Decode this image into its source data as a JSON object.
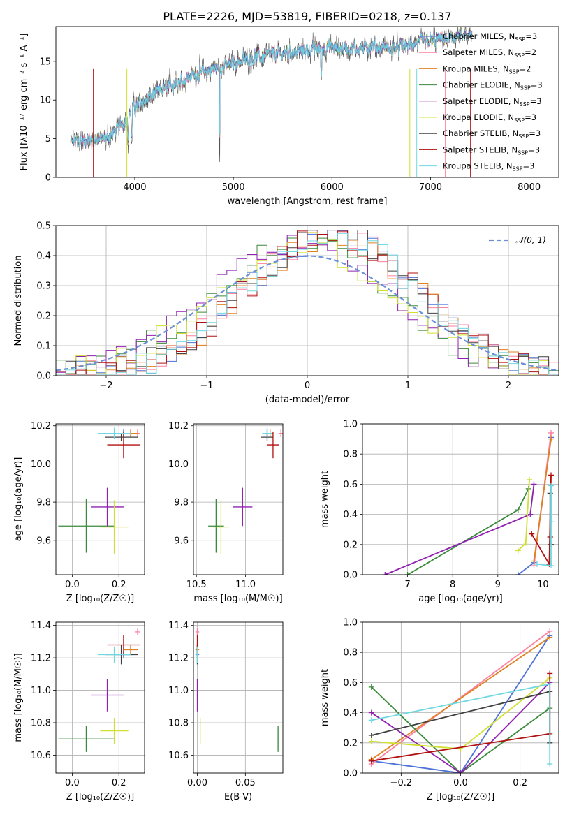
{
  "figure": {
    "title": "PLATE=2226, MJD=53819, FIBERID=0218, z=0.137"
  },
  "colors": {
    "chab_miles": "#4c72d8",
    "salp_miles": "#ff7f9f",
    "krou_miles": "#e08020",
    "chab_elodie": "#3a8a3a",
    "salp_elodie": "#9020b0",
    "krou_elodie": "#d0e030",
    "chab_stelib": "#404040",
    "salp_stelib": "#b01010",
    "krou_stelib": "#70d8e0",
    "normal": "#6a8fd8"
  },
  "chart_data": [
    {
      "id": "spectrum",
      "type": "line",
      "title": "PLATE=2226, MJD=53819, FIBERID=0218, z=0.137",
      "xlabel": "wavelength [Angstrom, rest frame]",
      "ylabel": "Flux [fλ10⁻¹⁷ erg cm⁻² s⁻¹ A⁻¹]",
      "xlim": [
        3200,
        8300
      ],
      "ylim": [
        0,
        19.5
      ],
      "xticks": [
        4000,
        5000,
        6000,
        7000,
        8000
      ],
      "yticks": [
        0,
        5,
        10,
        15
      ],
      "grid": false,
      "legend_position": "right",
      "legend": [
        "Chabrier MILES, N_SSP=3",
        "Salpeter MILES, N_SSP=2",
        "Kroupa MILES, N_SSP=2",
        "Chabrier ELODIE, N_SSP=3",
        "Salpeter ELODIE, N_SSP=3",
        "Kroupa ELODIE, N_SSP=3",
        "Chabrier STELIB, N_SSP=3",
        "Salpeter STELIB, N_SSP=3",
        "Kroupa STELIB, N_SSP=3"
      ],
      "continuum": {
        "x": [
          3350,
          3500,
          3700,
          3850,
          3950,
          4050,
          4200,
          4400,
          4600,
          4800,
          5000,
          5200,
          5400,
          5600,
          5800,
          6000,
          6200,
          6400,
          6600,
          6800,
          7000,
          7200,
          7300
        ],
        "y": [
          4.6,
          4.8,
          4.9,
          6.5,
          8.5,
          9.6,
          10.8,
          12.2,
          13.3,
          14.0,
          14.8,
          15.5,
          15.8,
          16.2,
          16.5,
          16.8,
          16.6,
          16.9,
          16.7,
          17.2,
          17.6,
          17.9,
          18.2
        ]
      }
    },
    {
      "id": "residuals",
      "type": "histogram",
      "xlabel": "(data-model)/error",
      "ylabel": "Normed distribution",
      "xlim": [
        -2.5,
        2.5
      ],
      "ylim": [
        0,
        0.5
      ],
      "xticks": [
        -2,
        -1,
        0,
        1,
        2
      ],
      "xticklabels": [
        "−2",
        "−1",
        "0",
        "1",
        "2"
      ],
      "yticks": [
        0.0,
        0.1,
        0.2,
        0.3,
        0.4,
        0.5
      ],
      "grid": true,
      "legend": [
        "𝒩(0, 1)"
      ],
      "legend_position": "top-right",
      "normal_curve": {
        "mean": 0,
        "sigma": 1
      },
      "bins": {
        "start": -2.5,
        "width": 0.1
      }
    },
    {
      "id": "age_vs_Z",
      "type": "scatter",
      "xlabel": "Z [log₁₀(Z/Z☉)]",
      "ylabel": "age  [log₁₀(age/yr)]",
      "xlim": [
        -0.07,
        0.31
      ],
      "ylim": [
        9.42,
        10.21
      ],
      "xticks": [
        0.0,
        0.2
      ],
      "yticks": [
        9.6,
        9.8,
        10.0,
        10.2
      ],
      "grid": true
    },
    {
      "id": "age_vs_mass",
      "type": "scatter",
      "xlabel": "mass [log₁₀(M/M☉)]",
      "ylabel": "",
      "xlim": [
        10.47,
        11.38
      ],
      "ylim": [
        9.42,
        10.21
      ],
      "xticks": [
        10.5,
        11.0
      ],
      "yticks": [
        9.6,
        9.8,
        10.0,
        10.2
      ],
      "grid": true
    },
    {
      "id": "massweight_vs_age",
      "type": "line",
      "xlabel": "age  [log₁₀(age/yr)]",
      "ylabel": "mass weight",
      "xlim": [
        6.0,
        10.35
      ],
      "ylim": [
        0,
        1.0
      ],
      "xticks": [
        7,
        8,
        9,
        10
      ],
      "yticks": [
        0.0,
        0.2,
        0.4,
        0.6,
        0.8,
        1.0
      ],
      "grid": true
    },
    {
      "id": "mass_vs_Z",
      "type": "scatter",
      "xlabel": "Z [log₁₀(Z/Z☉)]",
      "ylabel": "mass [log₁₀(M/M☉)]",
      "xlim": [
        -0.07,
        0.31
      ],
      "ylim": [
        10.49,
        11.42
      ],
      "xticks": [
        0.0,
        0.2
      ],
      "yticks": [
        10.6,
        10.8,
        11.0,
        11.2,
        11.4
      ],
      "grid": true
    },
    {
      "id": "mass_vs_ebv",
      "type": "scatter",
      "xlabel": "E(B-V)",
      "ylabel": "",
      "xlim": [
        -0.004,
        0.089
      ],
      "ylim": [
        10.49,
        11.42
      ],
      "xticks": [
        0.0,
        0.05
      ],
      "yticks": [
        10.6,
        10.8,
        11.0,
        11.2,
        11.4
      ],
      "grid": true
    },
    {
      "id": "massweight_vs_Z",
      "type": "line",
      "xlabel": "Z [log₁₀(Z/Z☉)]",
      "ylabel": "mass weight",
      "xlim": [
        -0.33,
        0.33
      ],
      "ylim": [
        0,
        1.0
      ],
      "xticks": [
        -0.2,
        0.0,
        0.2
      ],
      "xticklabels": [
        "−0.2",
        "0.0",
        "0.2"
      ],
      "yticks": [
        0.0,
        0.2,
        0.4,
        0.6,
        0.8,
        1.0
      ],
      "grid": true
    }
  ],
  "models": [
    {
      "key": "chab_miles",
      "age": 10.16,
      "age_err": 0.02,
      "Z": 0.22,
      "Z_err": 0.04,
      "mass": 11.22,
      "mass_err": 0.02,
      "ebv": 0.0,
      "ebv_err": 0.002,
      "wa": [
        9.45,
        9.8,
        10.18
      ],
      "ww": [
        0.0,
        0.08,
        0.91
      ],
      "wz": [
        -0.3,
        0.0,
        0.3
      ],
      "wzw": [
        0.08,
        0.0,
        0.91
      ]
    },
    {
      "key": "salp_miles",
      "age": 10.16,
      "age_err": 0.02,
      "Z": 0.28,
      "Z_err": 0.01,
      "mass": 11.36,
      "mass_err": 0.02,
      "ebv": 0.0,
      "ebv_err": 0.002,
      "wa": [
        9.8,
        10.18
      ],
      "ww": [
        0.06,
        0.94
      ],
      "wz": [
        -0.3,
        0.3
      ],
      "wzw": [
        0.06,
        0.94
      ]
    },
    {
      "key": "krou_miles",
      "age": 10.16,
      "age_err": 0.02,
      "Z": 0.25,
      "Z_err": 0.03,
      "mass": 11.25,
      "mass_err": 0.03,
      "ebv": 0.0,
      "ebv_err": 0.002,
      "wa": [
        9.8,
        10.18
      ],
      "ww": [
        0.09,
        0.9
      ],
      "wz": [
        -0.3,
        0.3
      ],
      "wzw": [
        0.09,
        0.9
      ]
    },
    {
      "key": "chab_elodie",
      "age": 9.675,
      "age_err": 0.14,
      "Z": 0.06,
      "Z_err": 0.12,
      "mass": 10.7,
      "mass_err": 0.08,
      "ebv": 0.084,
      "ebv_err": 0.0005,
      "wa": [
        7.0,
        9.45,
        9.68
      ],
      "ww": [
        0.0,
        0.43,
        0.57
      ],
      "wz": [
        -0.3,
        0.0,
        0.3
      ],
      "wzw": [
        0.57,
        0.0,
        0.43
      ]
    },
    {
      "key": "salp_elodie",
      "age": 9.775,
      "age_err": 0.1,
      "Z": 0.15,
      "Z_err": 0.07,
      "mass": 10.97,
      "mass_err": 0.1,
      "ebv": 0.0,
      "ebv_err": 0.0005,
      "wa": [
        6.5,
        9.72,
        9.8
      ],
      "ww": [
        0.0,
        0.4,
        0.6
      ],
      "wz": [
        -0.3,
        0.0,
        0.3
      ],
      "wzw": [
        0.4,
        0.0,
        0.6
      ]
    },
    {
      "key": "krou_elodie",
      "age": 9.67,
      "age_err": 0.14,
      "Z": 0.18,
      "Z_err": 0.06,
      "mass": 10.75,
      "mass_err": 0.08,
      "ebv": 0.003,
      "ebv_err": 0.0005,
      "wa": [
        9.45,
        9.62,
        9.7
      ],
      "ww": [
        0.16,
        0.21,
        0.63
      ],
      "wz": [
        -0.3,
        0.0,
        0.3
      ],
      "wzw": [
        0.21,
        0.16,
        0.63
      ]
    },
    {
      "key": "chab_stelib",
      "age": 10.14,
      "age_err": 0.02,
      "Z": 0.21,
      "Z_err": 0.07,
      "mass": 11.22,
      "mass_err": 0.06,
      "ebv": 0.0,
      "ebv_err": 0.001,
      "wa": [
        10.18,
        10.16,
        10.16
      ],
      "ww": [
        0.2,
        0.25,
        0.54
      ],
      "wz": [
        -0.3,
        0.3,
        0.3
      ],
      "wzw": [
        0.25,
        0.54,
        0.2
      ]
    },
    {
      "key": "salp_stelib",
      "age": 10.1,
      "age_err": 0.07,
      "Z": 0.22,
      "Z_err": 0.07,
      "mass": 11.28,
      "mass_err": 0.06,
      "ebv": 0.0,
      "ebv_err": 0.001,
      "wa": [
        9.75,
        10.14,
        10.18,
        10.16
      ],
      "ww": [
        0.27,
        0.07,
        0.66,
        0.25
      ],
      "wz": [
        -0.3,
        0.3,
        0.3
      ],
      "wzw": [
        0.08,
        0.26,
        0.66
      ]
    },
    {
      "key": "krou_stelib",
      "age": 10.16,
      "age_err": 0.03,
      "Z": 0.18,
      "Z_err": 0.07,
      "mass": 11.22,
      "mass_err": 0.05,
      "ebv": 0.0,
      "ebv_err": 0.001,
      "wa": [
        9.87,
        10.18,
        10.18,
        10.2
      ],
      "ww": [
        0.07,
        0.06,
        0.59,
        0.35
      ],
      "wz": [
        -0.3,
        0.3,
        0.3
      ],
      "wzw": [
        0.35,
        0.59,
        0.06
      ]
    }
  ]
}
